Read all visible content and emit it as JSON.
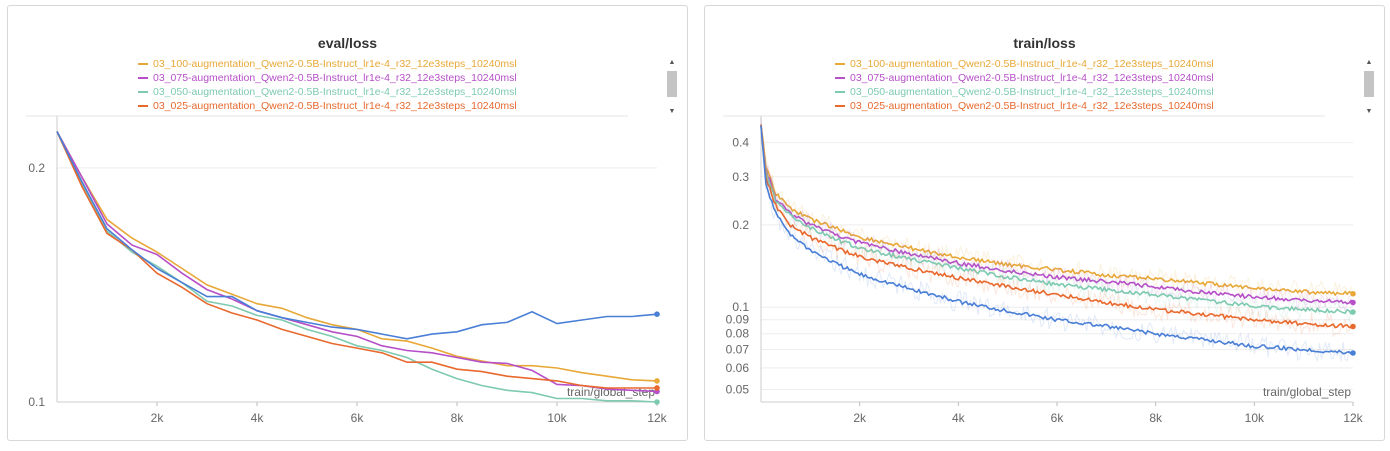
{
  "chart_data": [
    {
      "type": "line",
      "title": "eval/loss",
      "xlabel": "train/global_step",
      "ylabel": "",
      "xlim": [
        0,
        12000
      ],
      "ylim": [
        0.1,
        0.22
      ],
      "x_ticks": [
        2000,
        4000,
        6000,
        8000,
        10000,
        12000
      ],
      "x_tick_labels": [
        "2k",
        "4k",
        "6k",
        "8k",
        "10k",
        "12k"
      ],
      "y_ticks": [
        0.1,
        0.2
      ],
      "y_tick_labels": [
        "0.1",
        "0.2"
      ],
      "y_scale": "linear",
      "grid": true,
      "legend_position": "top",
      "series": [
        {
          "name": "03_100-augmentation_Qwen2-0.5B-Instruct_lr1e-4_r32_12e3steps_10240msl",
          "color": "#e8a838",
          "x": [
            0,
            500,
            1000,
            1500,
            2000,
            2500,
            3000,
            3500,
            4000,
            4500,
            5000,
            5500,
            6000,
            6500,
            7000,
            7500,
            8000,
            8500,
            9000,
            9500,
            10000,
            10500,
            11000,
            11500,
            12000
          ],
          "y": [
            0.2155,
            0.196,
            0.178,
            0.17,
            0.164,
            0.157,
            0.15,
            0.146,
            0.142,
            0.14,
            0.136,
            0.133,
            0.131,
            0.127,
            0.126,
            0.123,
            0.1195,
            0.1175,
            0.1155,
            0.1155,
            0.1145,
            0.1125,
            0.111,
            0.1095,
            0.109
          ]
        },
        {
          "name": "03_075-augmentation_Qwen2-0.5B-Instruct_lr1e-4_r32_12e3steps_10240msl",
          "color": "#b64fc8",
          "x": [
            0,
            500,
            1000,
            1500,
            2000,
            2500,
            3000,
            3500,
            4000,
            4500,
            5000,
            5500,
            6000,
            6500,
            7000,
            7500,
            8000,
            8500,
            9000,
            9500,
            10000,
            10500,
            11000,
            11500,
            12000
          ],
          "y": [
            0.2155,
            0.196,
            0.176,
            0.167,
            0.163,
            0.155,
            0.148,
            0.144,
            0.139,
            0.136,
            0.133,
            0.13,
            0.128,
            0.124,
            0.122,
            0.121,
            0.119,
            0.117,
            0.1165,
            0.1135,
            0.1075,
            0.107,
            0.1055,
            0.105,
            0.1045
          ]
        },
        {
          "name": "03_050-augmentation_Qwen2-0.5B-Instruct_lr1e-4_r32_12e3steps_10240msl",
          "color": "#7ecab0",
          "x": [
            0,
            500,
            1000,
            1500,
            2000,
            2500,
            3000,
            3500,
            4000,
            4500,
            5000,
            5500,
            6000,
            6500,
            7000,
            7500,
            8000,
            8500,
            9000,
            9500,
            10000,
            10500,
            11000,
            11500,
            12000
          ],
          "y": [
            0.2155,
            0.193,
            0.173,
            0.164,
            0.158,
            0.151,
            0.143,
            0.141,
            0.137,
            0.135,
            0.131,
            0.128,
            0.124,
            0.122,
            0.119,
            0.114,
            0.11,
            0.107,
            0.105,
            0.104,
            0.1015,
            0.1015,
            0.1005,
            0.1005,
            0.1
          ]
        },
        {
          "name": "03_025-augmentation_Qwen2-0.5B-Instruct_lr1e-4_r32_12e3steps_10240msl",
          "color": "#e8692e",
          "x": [
            0,
            500,
            1000,
            1500,
            2000,
            2500,
            3000,
            3500,
            4000,
            4500,
            5000,
            5500,
            6000,
            6500,
            7000,
            7500,
            8000,
            8500,
            9000,
            9500,
            10000,
            10500,
            11000,
            11500,
            12000
          ],
          "y": [
            0.2155,
            0.192,
            0.172,
            0.165,
            0.155,
            0.149,
            0.142,
            0.138,
            0.135,
            0.131,
            0.128,
            0.125,
            0.123,
            0.121,
            0.117,
            0.117,
            0.114,
            0.113,
            0.111,
            0.11,
            0.109,
            0.107,
            0.106,
            0.106,
            0.106
          ]
        },
        {
          "name": "",
          "color": "#4a7fd6",
          "x": [
            0,
            500,
            1000,
            1500,
            2000,
            2500,
            3000,
            3500,
            4000,
            4500,
            5000,
            5500,
            6000,
            6500,
            7000,
            7500,
            8000,
            8500,
            9000,
            9500,
            10000,
            10500,
            11000,
            11500,
            12000
          ],
          "y": [
            0.2155,
            0.194,
            0.174,
            0.165,
            0.157,
            0.151,
            0.145,
            0.145,
            0.139,
            0.136,
            0.134,
            0.132,
            0.131,
            0.129,
            0.127,
            0.129,
            0.13,
            0.133,
            0.134,
            0.1385,
            0.1335,
            0.135,
            0.1365,
            0.1365,
            0.1375
          ]
        }
      ]
    },
    {
      "type": "line",
      "title": "train/loss",
      "xlabel": "train/global_step",
      "ylabel": "",
      "xlim": [
        0,
        12000
      ],
      "ylim": [
        0.045,
        0.48
      ],
      "x_ticks": [
        2000,
        4000,
        6000,
        8000,
        10000,
        12000
      ],
      "x_tick_labels": [
        "2k",
        "4k",
        "6k",
        "8k",
        "10k",
        "12k"
      ],
      "y_ticks": [
        0.05,
        0.06,
        0.07,
        0.08,
        0.09,
        0.1,
        0.2,
        0.3,
        0.4
      ],
      "y_tick_labels": [
        "0.05",
        "0.06",
        "0.07",
        "0.08",
        "0.09",
        "0.1",
        "0.2",
        "0.3",
        "0.4"
      ],
      "y_scale": "log",
      "grid": true,
      "legend_position": "top",
      "series": [
        {
          "name": "03_100-augmentation_Qwen2-0.5B-Instruct_lr1e-4_r32_12e3steps_10240msl",
          "color": "#e8a838",
          "x": [
            0,
            100,
            300,
            600,
            1000,
            1500,
            2000,
            3000,
            4000,
            5000,
            6000,
            7000,
            8000,
            9000,
            10000,
            11000,
            12000
          ],
          "y": [
            0.46,
            0.33,
            0.26,
            0.23,
            0.21,
            0.195,
            0.18,
            0.165,
            0.152,
            0.143,
            0.137,
            0.131,
            0.127,
            0.122,
            0.118,
            0.114,
            0.112
          ]
        },
        {
          "name": "03_075-augmentation_Qwen2-0.5B-Instruct_lr1e-4_r32_12e3steps_10240msl",
          "color": "#b64fc8",
          "x": [
            0,
            100,
            300,
            600,
            1000,
            1500,
            2000,
            3000,
            4000,
            5000,
            6000,
            7000,
            8000,
            9000,
            10000,
            11000,
            12000
          ],
          "y": [
            0.46,
            0.32,
            0.25,
            0.22,
            0.2,
            0.185,
            0.172,
            0.157,
            0.145,
            0.136,
            0.129,
            0.124,
            0.119,
            0.113,
            0.109,
            0.106,
            0.104
          ]
        },
        {
          "name": "03_050-augmentation_Qwen2-0.5B-Instruct_lr1e-4_r32_12e3steps_10240msl",
          "color": "#7ecab0",
          "x": [
            0,
            100,
            300,
            600,
            1000,
            1500,
            2000,
            3000,
            4000,
            5000,
            6000,
            7000,
            8000,
            9000,
            10000,
            11000,
            12000
          ],
          "y": [
            0.46,
            0.31,
            0.245,
            0.215,
            0.195,
            0.178,
            0.165,
            0.15,
            0.139,
            0.129,
            0.121,
            0.116,
            0.111,
            0.106,
            0.101,
            0.098,
            0.096
          ]
        },
        {
          "name": "03_025-augmentation_Qwen2-0.5B-Instruct_lr1e-4_r32_12e3steps_10240msl",
          "color": "#e8692e",
          "x": [
            0,
            100,
            300,
            600,
            1000,
            1500,
            2000,
            3000,
            4000,
            5000,
            6000,
            7000,
            8000,
            9000,
            10000,
            11000,
            12000
          ],
          "y": [
            0.46,
            0.3,
            0.235,
            0.2,
            0.18,
            0.165,
            0.153,
            0.139,
            0.128,
            0.119,
            0.111,
            0.104,
            0.098,
            0.094,
            0.09,
            0.087,
            0.085
          ]
        },
        {
          "name": "",
          "color": "#4a7fd6",
          "x": [
            0,
            100,
            300,
            600,
            1000,
            1500,
            2000,
            3000,
            4000,
            5000,
            6000,
            7000,
            8000,
            9000,
            10000,
            11000,
            12000
          ],
          "y": [
            0.46,
            0.28,
            0.22,
            0.185,
            0.162,
            0.145,
            0.132,
            0.117,
            0.105,
            0.097,
            0.09,
            0.085,
            0.08,
            0.076,
            0.072,
            0.07,
            0.068
          ]
        }
      ]
    }
  ]
}
